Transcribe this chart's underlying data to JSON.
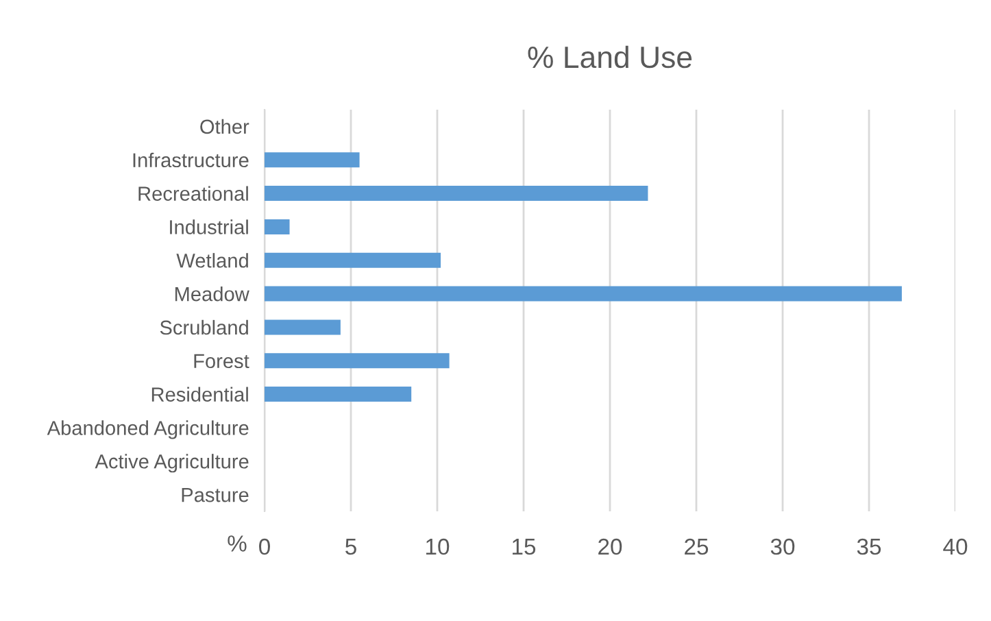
{
  "chart_data": {
    "type": "bar",
    "orientation": "horizontal",
    "title": "% Land Use",
    "xlabel": "%",
    "categories": [
      "Other",
      "Infrastructure",
      "Recreational",
      "Industrial",
      "Wetland",
      "Meadow",
      "Scrubland",
      "Forest",
      "Residential",
      "Abandoned Agriculture",
      "Active Agriculture",
      "Pasture"
    ],
    "values": [
      0,
      5.5,
      22.2,
      1.45,
      10.2,
      36.9,
      4.4,
      10.7,
      8.5,
      0,
      0,
      0
    ],
    "color": "#5b9bd5",
    "xlim": [
      0,
      40
    ],
    "xticks": [
      0,
      5,
      10,
      15,
      20,
      25,
      30,
      35,
      40
    ],
    "grid": "x"
  }
}
